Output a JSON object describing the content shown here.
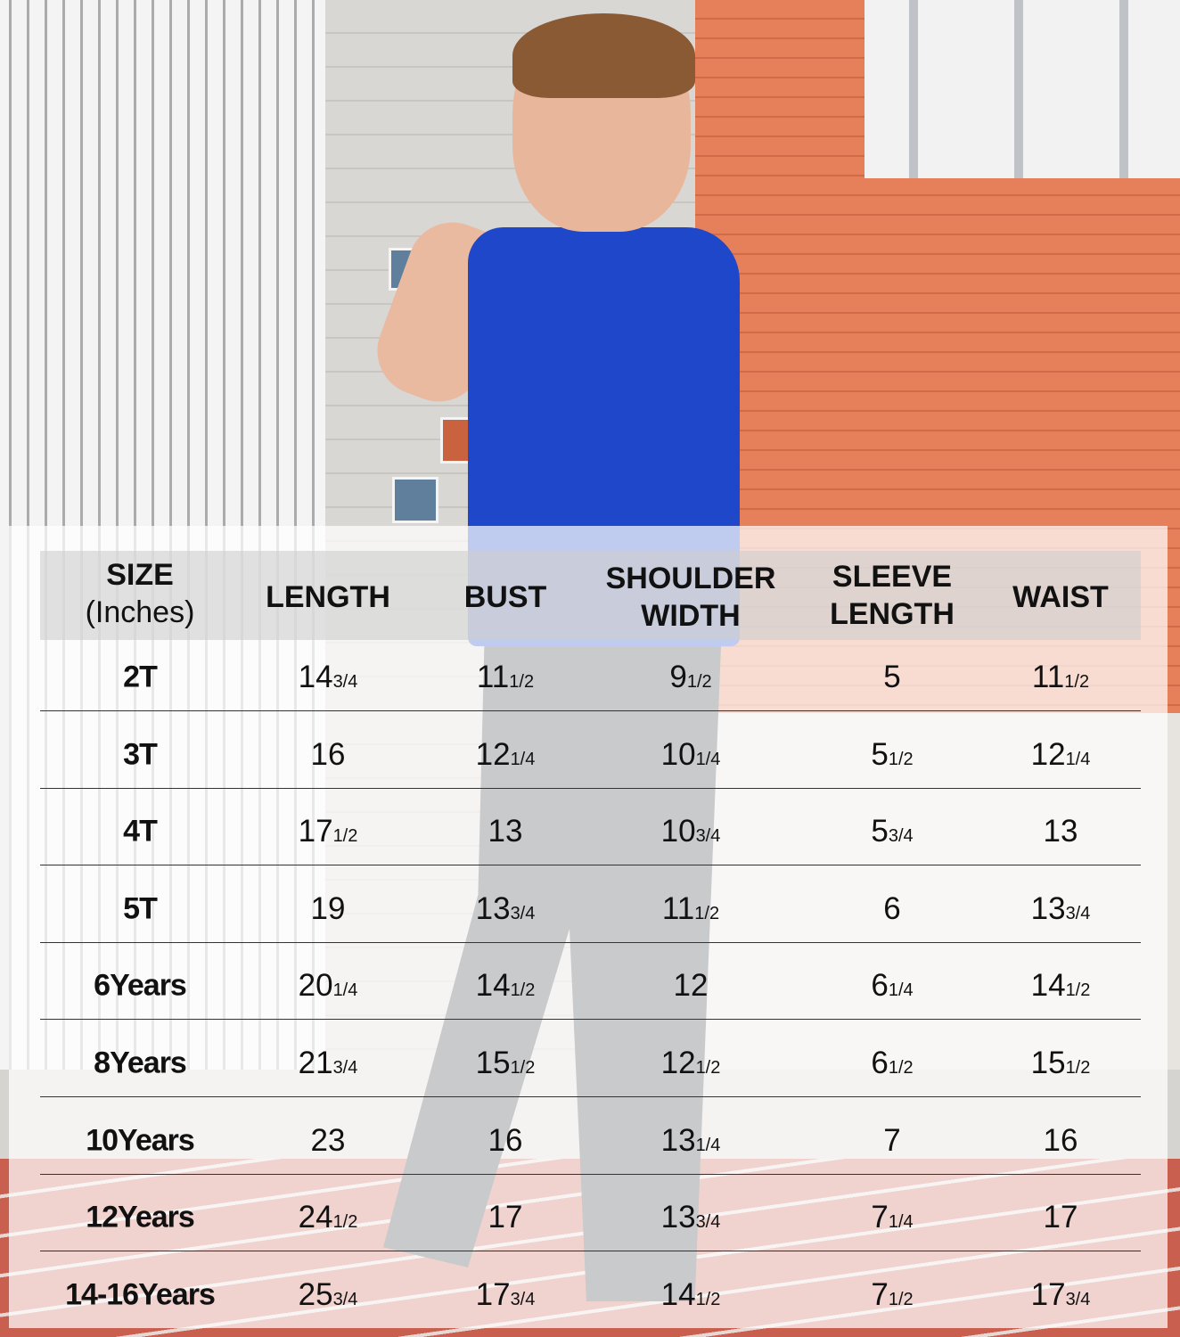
{
  "size_chart": {
    "headers": [
      [
        "SIZE",
        "(Inches)"
      ],
      [
        "LENGTH"
      ],
      [
        "BUST"
      ],
      [
        "SHOULDER",
        "WIDTH"
      ],
      [
        "SLEEVE",
        "LENGTH"
      ],
      [
        "WAIST"
      ]
    ],
    "rows": [
      {
        "size": "2T",
        "values": [
          [
            "14",
            "3/4"
          ],
          [
            "11",
            "1/2"
          ],
          [
            "9",
            "1/2"
          ],
          [
            "5",
            ""
          ],
          [
            "11",
            "1/2"
          ]
        ]
      },
      {
        "size": "3T",
        "values": [
          [
            "16",
            ""
          ],
          [
            "12",
            "1/4"
          ],
          [
            "10",
            "1/4"
          ],
          [
            "5",
            "1/2"
          ],
          [
            "12",
            "1/4"
          ]
        ]
      },
      {
        "size": "4T",
        "values": [
          [
            "17",
            "1/2"
          ],
          [
            "13",
            ""
          ],
          [
            "10",
            "3/4"
          ],
          [
            "5",
            "3/4"
          ],
          [
            "13",
            ""
          ]
        ]
      },
      {
        "size": "5T",
        "values": [
          [
            "19",
            ""
          ],
          [
            "13",
            "3/4"
          ],
          [
            "11",
            "1/2"
          ],
          [
            "6",
            ""
          ],
          [
            "13",
            "3/4"
          ]
        ]
      },
      {
        "size": "6Years",
        "values": [
          [
            "20",
            "1/4"
          ],
          [
            "14",
            "1/2"
          ],
          [
            "12",
            ""
          ],
          [
            "6",
            "1/4"
          ],
          [
            "14",
            "1/2"
          ]
        ]
      },
      {
        "size": "8Years",
        "values": [
          [
            "21",
            "3/4"
          ],
          [
            "15",
            "1/2"
          ],
          [
            "12",
            "1/2"
          ],
          [
            "6",
            "1/2"
          ],
          [
            "15",
            "1/2"
          ]
        ]
      },
      {
        "size": "10Years",
        "values": [
          [
            "23",
            ""
          ],
          [
            "16",
            ""
          ],
          [
            "13",
            "1/4"
          ],
          [
            "7",
            ""
          ],
          [
            "16",
            ""
          ]
        ]
      },
      {
        "size": "12Years",
        "values": [
          [
            "24",
            "1/2"
          ],
          [
            "17",
            ""
          ],
          [
            "13",
            "3/4"
          ],
          [
            "7",
            "1/4"
          ],
          [
            "17",
            ""
          ]
        ]
      },
      {
        "size": "14-16Years",
        "values": [
          [
            "25",
            "3/4"
          ],
          [
            "17",
            "3/4"
          ],
          [
            "14",
            "1/2"
          ],
          [
            "7",
            "1/2"
          ],
          [
            "17",
            "3/4"
          ]
        ]
      }
    ]
  },
  "colors": {
    "shirt": "#1f47c9",
    "building_orange": "#e6805a",
    "track": "#c9604f"
  }
}
